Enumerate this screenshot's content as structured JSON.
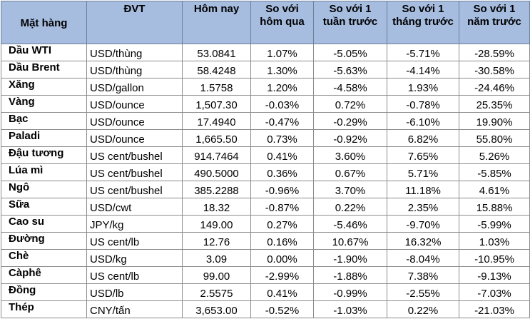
{
  "table": {
    "headers": [
      "Mặt hàng",
      "ĐVT",
      "Hôm nay",
      "So với hôm qua",
      "So với 1 tuần trước",
      "So với 1 tháng trước",
      "So với 1 năm trước"
    ],
    "rows": [
      [
        "Dầu WTI",
        "USD/thùng",
        "53.0841",
        "1.07%",
        "-5.05%",
        "-5.71%",
        "-28.59%"
      ],
      [
        "Dầu Brent",
        "USD/thùng",
        "58.4248",
        "1.30%",
        "-5.63%",
        "-4.14%",
        "-30.58%"
      ],
      [
        "Xăng",
        "USD/gallon",
        "1.5758",
        "1.20%",
        "-4.58%",
        "1.93%",
        "-24.46%"
      ],
      [
        "Vàng",
        "USD/ounce",
        "1,507.30",
        "-0.03%",
        "0.72%",
        "-0.78%",
        "25.35%"
      ],
      [
        "Bạc",
        "USD/ounce",
        "17.4940",
        "-0.47%",
        "-0.29%",
        "-6.10%",
        "19.90%"
      ],
      [
        "Paladi",
        "USD/ounce",
        "1,665.50",
        "0.73%",
        "-0.92%",
        "6.82%",
        "55.80%"
      ],
      [
        "Đậu tương",
        "US cent/bushel",
        "914.7464",
        "0.41%",
        "3.60%",
        "7.65%",
        "5.26%"
      ],
      [
        "Lúa mì",
        "US cent/bushel",
        "490.5000",
        "0.36%",
        "0.67%",
        "5.71%",
        "-5.85%"
      ],
      [
        "Ngô",
        "US cent/bushel",
        "385.2288",
        "-0.96%",
        "3.70%",
        "11.18%",
        "4.61%"
      ],
      [
        "Sữa",
        "USD/cwt",
        "18.32",
        "-0.87%",
        "0.22%",
        "2.35%",
        "15.88%"
      ],
      [
        "Cao su",
        "JPY/kg",
        "149.00",
        "0.27%",
        "-5.46%",
        "-9.70%",
        "-5.99%"
      ],
      [
        "Đường",
        "US cent/lb",
        "12.76",
        "0.16%",
        "10.67%",
        "16.32%",
        "1.03%"
      ],
      [
        "Chè",
        "USD/kg",
        "3.09",
        "0.00%",
        "-1.90%",
        "-8.04%",
        "-10.95%"
      ],
      [
        "Càphê",
        "US cent/lb",
        "99.00",
        "-2.99%",
        "-1.88%",
        "7.38%",
        "-9.13%"
      ],
      [
        "Đồng",
        "USD/lb",
        "2.5575",
        "0.41%",
        "-0.99%",
        "-2.55%",
        "-7.03%"
      ],
      [
        "Thép",
        "CNY/tấn",
        "3,653.00",
        "-0.52%",
        "-1.03%",
        "0.22%",
        "-21.03%"
      ]
    ]
  }
}
